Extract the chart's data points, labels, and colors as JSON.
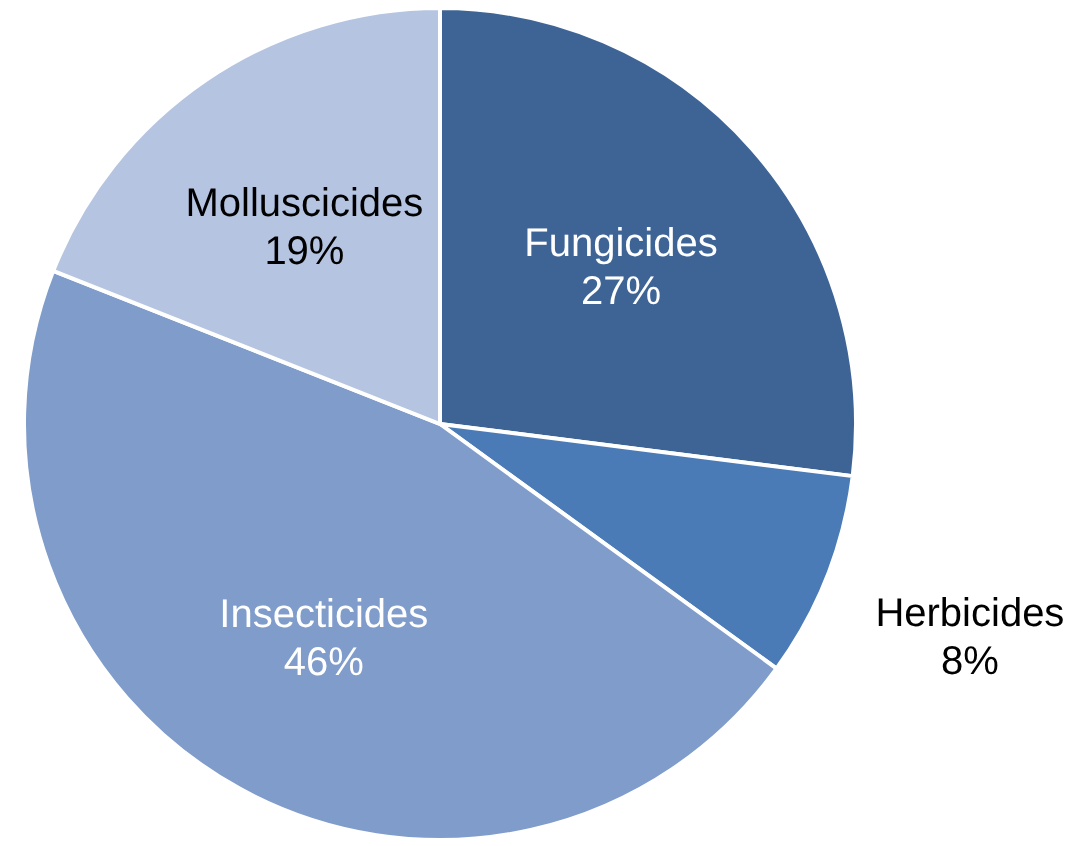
{
  "chart_data": {
    "type": "pie",
    "categories": [
      "Fungicides",
      "Herbicides",
      "Insecticides",
      "Molluscicides"
    ],
    "values": [
      27,
      8,
      46,
      19
    ],
    "value_labels": [
      "27%",
      "8%",
      "46%",
      "19%"
    ],
    "colors": [
      "#3e6496",
      "#4a7bb6",
      "#7f9cca",
      "#b5c4e0"
    ]
  }
}
